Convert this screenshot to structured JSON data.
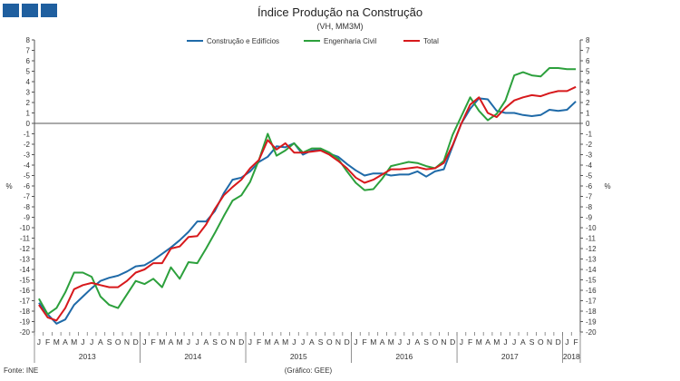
{
  "header": {
    "title": "Índice Produção na Construção",
    "subtitle": "(VH, MM3M)"
  },
  "footer": {
    "source": "Fonte: INE",
    "credit": "(Gráfico: GEE)"
  },
  "colors": {
    "construcao": "#1f6aa8",
    "engenharia": "#2ca03c",
    "total": "#d7191c",
    "logo": "#1f5f9f"
  },
  "chart_data": {
    "type": "line",
    "title": "Índice Produção na Construção",
    "subtitle": "(VH, MM3M)",
    "ylabel_left": "%",
    "ylabel_right": "%",
    "ylim": [
      -20,
      8
    ],
    "yticks": [
      8,
      7,
      6,
      5,
      4,
      3,
      2,
      1,
      0,
      -1,
      -2,
      -3,
      -4,
      -5,
      -6,
      -7,
      -8,
      -9,
      -10,
      -11,
      -12,
      -13,
      -14,
      -15,
      -16,
      -17,
      -18,
      -19,
      -20
    ],
    "month_labels": [
      "J",
      "F",
      "M",
      "A",
      "M",
      "J",
      "J",
      "A",
      "S",
      "O",
      "N",
      "D",
      "J",
      "F",
      "M",
      "A",
      "M",
      "J",
      "J",
      "A",
      "S",
      "O",
      "N",
      "D",
      "J",
      "F",
      "M",
      "A",
      "M",
      "J",
      "J",
      "A",
      "S",
      "O",
      "N",
      "D",
      "J",
      "F",
      "M",
      "A",
      "M",
      "J",
      "J",
      "A",
      "S",
      "O",
      "N",
      "D",
      "J",
      "F",
      "M",
      "A",
      "M",
      "J",
      "J",
      "A",
      "S",
      "O",
      "N",
      "D",
      "J",
      "F"
    ],
    "years": [
      {
        "label": "2013",
        "start": 0,
        "count": 12
      },
      {
        "label": "2014",
        "start": 12,
        "count": 12
      },
      {
        "label": "2015",
        "start": 24,
        "count": 12
      },
      {
        "label": "2016",
        "start": 36,
        "count": 12
      },
      {
        "label": "2017",
        "start": 48,
        "count": 12
      },
      {
        "label": "2018",
        "start": 60,
        "count": 2
      }
    ],
    "legend": [
      "Construção e Edifícios",
      "Engenharia Civil",
      "Total"
    ],
    "series": [
      {
        "name": "Construção e Edifícios",
        "color": "#1f6aa8",
        "values": [
          -17.2,
          -18.3,
          -19.2,
          -18.8,
          -17.4,
          -16.6,
          -15.8,
          -15.1,
          -14.8,
          -14.6,
          -14.2,
          -13.7,
          -13.6,
          -13.1,
          -12.5,
          -11.9,
          -11.2,
          -10.4,
          -9.4,
          -9.4,
          -8.4,
          -6.7,
          -5.4,
          -5.2,
          -4.6,
          -3.7,
          -3.2,
          -2.2,
          -2.3,
          -1.9,
          -3.0,
          -2.6,
          -2.5,
          -2.9,
          -3.2,
          -3.9,
          -4.5,
          -5.0,
          -4.8,
          -4.8,
          -5.0,
          -4.9,
          -4.9,
          -4.6,
          -5.1,
          -4.6,
          -4.4,
          -2.2,
          0.0,
          1.4,
          2.4,
          2.3,
          1.2,
          1.0,
          1.0,
          0.8,
          0.7,
          0.8,
          1.3,
          1.2,
          1.3,
          2.1
        ]
      },
      {
        "name": "Engenharia Civil",
        "color": "#2ca03c",
        "values": [
          -16.8,
          -18.3,
          -17.7,
          -16.2,
          -14.3,
          -14.3,
          -14.7,
          -16.6,
          -17.4,
          -17.7,
          -16.4,
          -15.1,
          -15.4,
          -14.9,
          -15.7,
          -13.8,
          -14.9,
          -13.3,
          -13.4,
          -12.0,
          -10.5,
          -8.9,
          -7.4,
          -6.9,
          -5.6,
          -3.5,
          -1.0,
          -3.1,
          -2.6,
          -1.9,
          -2.8,
          -2.4,
          -2.4,
          -2.8,
          -3.4,
          -4.6,
          -5.7,
          -6.4,
          -6.3,
          -5.3,
          -4.1,
          -3.9,
          -3.7,
          -3.8,
          -4.1,
          -4.3,
          -3.6,
          -1.1,
          0.7,
          2.5,
          1.2,
          0.3,
          0.9,
          2.2,
          4.6,
          4.9,
          4.6,
          4.5,
          5.3,
          5.3,
          5.2,
          5.2
        ]
      },
      {
        "name": "Total",
        "color": "#d7191c",
        "values": [
          -17.4,
          -18.6,
          -18.9,
          -17.7,
          -15.9,
          -15.5,
          -15.3,
          -15.5,
          -15.7,
          -15.7,
          -15.1,
          -14.3,
          -14.0,
          -13.4,
          -13.4,
          -12.0,
          -11.8,
          -10.9,
          -10.8,
          -9.7,
          -8.2,
          -6.9,
          -6.1,
          -5.4,
          -4.3,
          -3.5,
          -1.6,
          -2.5,
          -1.9,
          -2.8,
          -2.8,
          -2.7,
          -2.6,
          -3.0,
          -3.6,
          -4.3,
          -5.2,
          -5.7,
          -5.4,
          -4.9,
          -4.4,
          -4.4,
          -4.3,
          -4.2,
          -4.4,
          -4.3,
          -3.8,
          -2.1,
          0.0,
          1.8,
          2.5,
          1.0,
          0.6,
          1.5,
          2.2,
          2.5,
          2.7,
          2.6,
          2.9,
          3.1,
          3.1,
          3.5
        ]
      }
    ]
  }
}
